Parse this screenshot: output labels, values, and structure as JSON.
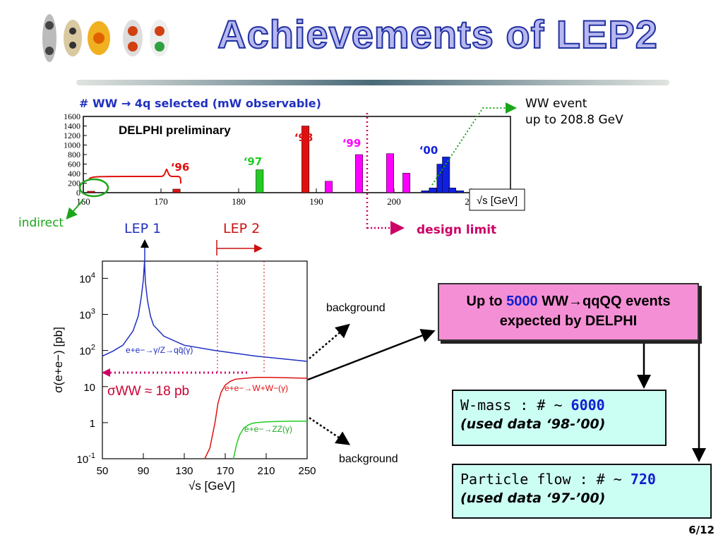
{
  "slide": {
    "title": "Achievements of LEP2",
    "page_number": "6/12"
  },
  "labels": {
    "ww_event_line1": "WW event",
    "ww_event_line2": "up to 208.8 GeV",
    "indirect": "indirect",
    "design_limit": "design limit",
    "lep1": "LEP 1",
    "lep2": "LEP 2",
    "background_upper": "background",
    "background_lower": "background"
  },
  "boxes": {
    "expect_prefix": "Up to ",
    "expect_number": "5000",
    "expect_suffix": " WW→qqQQ events",
    "expect_line2": "expected by DELPHI",
    "wmass_prefix": "W-mass : # ~ ",
    "wmass_number": "6000",
    "wmass_sub": "(used data ‘98-’00)",
    "pflow_prefix": "Particle flow : # ~ ",
    "pflow_number": "720",
    "pflow_sub": "(used data ‘97-’00)"
  },
  "colors": {
    "blue": "#2030c0",
    "red": "#e01010",
    "magenta": "#ff00ff",
    "green": "#22cc22",
    "pink_box": "#f58fd5",
    "cyan_box": "#ccfff4"
  },
  "chart_data": [
    {
      "type": "bar",
      "title": "# WW → 4q selected (mW observable)",
      "annotation": "DELPHI preliminary",
      "xlabel": "√s [GeV]",
      "xlim": [
        160,
        215
      ],
      "ylim": [
        0,
        1600
      ],
      "xticks": [
        160,
        170,
        180,
        190,
        200,
        210
      ],
      "yticks": [
        0,
        200,
        400,
        600,
        800,
        1000,
        1200,
        1400,
        1600
      ],
      "year_labels": [
        "‘96",
        "‘97",
        "‘98",
        "‘99",
        "‘00"
      ],
      "series": [
        {
          "name": "‘96",
          "color": "#e01010",
          "x": [
            161,
            172
          ],
          "values": [
            30,
            75
          ]
        },
        {
          "name": "‘97",
          "color": "#22cc22",
          "x": [
            182.7
          ],
          "values": [
            480
          ]
        },
        {
          "name": "‘98",
          "color": "#e01010",
          "x": [
            188.6
          ],
          "values": [
            1400
          ]
        },
        {
          "name": "‘99",
          "color": "#ff00ff",
          "x": [
            191.6,
            195.5,
            199.5,
            201.6
          ],
          "values": [
            240,
            800,
            820,
            410
          ]
        },
        {
          "name": "‘00",
          "color": "#1020e0",
          "x": [
            204,
            205,
            206,
            206.7,
            207.5,
            208.5
          ],
          "values": [
            40,
            100,
            600,
            750,
            100,
            40
          ]
        }
      ]
    },
    {
      "type": "line",
      "xlabel": "√s [GeV]",
      "ylabel": "σ(e+e−) [pb]",
      "log_y": true,
      "xlim": [
        50,
        250
      ],
      "ylim": [
        0.1,
        30000
      ],
      "xticks": [
        50,
        90,
        130,
        170,
        210,
        250
      ],
      "yticks": [
        "10-1",
        "1",
        "10",
        "10 2",
        "10 3",
        "10 4"
      ],
      "annotation": "σWW ≈ 18 pb",
      "series": [
        {
          "name": "e+e−→γ/Z→qq̄(γ)",
          "color": "#2030c0",
          "x": [
            50,
            60,
            70,
            80,
            85,
            88,
            90,
            91.2,
            92,
            94,
            97,
            100,
            110,
            130,
            160,
            200,
            250
          ],
          "values": [
            70,
            95,
            140,
            350,
            900,
            3000,
            9000,
            30000,
            8000,
            2500,
            900,
            500,
            250,
            140,
            100,
            70,
            50
          ]
        },
        {
          "name": "e+e−→W+W−(γ)",
          "color": "#e01010",
          "x": [
            150,
            155,
            160,
            163,
            166,
            170,
            175,
            180,
            190,
            200,
            210,
            230,
            250
          ],
          "values": [
            0.1,
            0.2,
            1,
            3.5,
            7,
            11,
            14,
            16,
            17,
            18,
            18,
            17.5,
            17
          ]
        },
        {
          "name": "e+e−→ZZ(γ)",
          "color": "#22cc22",
          "x": [
            178,
            181,
            184,
            188,
            192,
            196,
            200,
            210,
            220,
            235,
            250
          ],
          "values": [
            0.1,
            0.25,
            0.45,
            0.7,
            0.85,
            0.95,
            1.0,
            1.05,
            1.08,
            1.1,
            1.1
          ]
        }
      ]
    }
  ]
}
